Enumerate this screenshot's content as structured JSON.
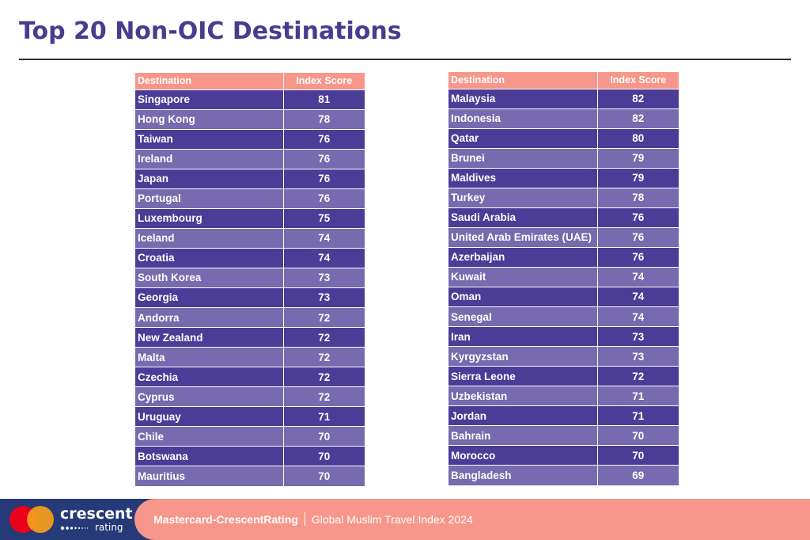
{
  "page": {
    "title": "Top 20 Non-OIC Destinations"
  },
  "table_header": {
    "destination": "Destination",
    "score": "Index Score"
  },
  "left_table": [
    {
      "destination": "Singapore",
      "score": "81"
    },
    {
      "destination": "Hong Kong",
      "score": "78"
    },
    {
      "destination": "Taiwan",
      "score": "76"
    },
    {
      "destination": "Ireland",
      "score": "76"
    },
    {
      "destination": "Japan",
      "score": "76"
    },
    {
      "destination": "Portugal",
      "score": "76"
    },
    {
      "destination": "Luxembourg",
      "score": "75"
    },
    {
      "destination": "Iceland",
      "score": "74"
    },
    {
      "destination": "Croatia",
      "score": "74"
    },
    {
      "destination": "South Korea",
      "score": "73"
    },
    {
      "destination": "Georgia",
      "score": "73"
    },
    {
      "destination": "Andorra",
      "score": "72"
    },
    {
      "destination": "New Zealand",
      "score": "72"
    },
    {
      "destination": "Malta",
      "score": "72"
    },
    {
      "destination": "Czechia",
      "score": "72"
    },
    {
      "destination": "Cyprus",
      "score": "72"
    },
    {
      "destination": "Uruguay",
      "score": "71"
    },
    {
      "destination": "Chile",
      "score": "70"
    },
    {
      "destination": "Botswana",
      "score": "70"
    },
    {
      "destination": "Mauritius",
      "score": "70"
    }
  ],
  "right_table": [
    {
      "destination": "Malaysia",
      "score": "82"
    },
    {
      "destination": "Indonesia",
      "score": "82"
    },
    {
      "destination": "Qatar",
      "score": "80"
    },
    {
      "destination": "Brunei",
      "score": "79"
    },
    {
      "destination": "Maldives",
      "score": "79"
    },
    {
      "destination": "Turkey",
      "score": "78"
    },
    {
      "destination": "Saudi Arabia",
      "score": "76"
    },
    {
      "destination": "United Arab Emirates (UAE)",
      "score": "76"
    },
    {
      "destination": "Azerbaijan",
      "score": "76"
    },
    {
      "destination": "Kuwait",
      "score": "74"
    },
    {
      "destination": "Oman",
      "score": "74"
    },
    {
      "destination": "Senegal",
      "score": "74"
    },
    {
      "destination": "Iran",
      "score": "73"
    },
    {
      "destination": "Kyrgyzstan",
      "score": "73"
    },
    {
      "destination": "Sierra Leone",
      "score": "72"
    },
    {
      "destination": "Uzbekistan",
      "score": "71"
    },
    {
      "destination": "Jordan",
      "score": "71"
    },
    {
      "destination": "Bahrain",
      "score": "70"
    },
    {
      "destination": "Morocco",
      "score": "70"
    },
    {
      "destination": "Bangladesh",
      "score": "69"
    }
  ],
  "footer": {
    "brand_name": "crescent",
    "brand_sub": "rating",
    "publisher": "Mastercard-CrescentRating",
    "report": "Global Muslim Travel Index 2024",
    "icons": [
      "mastercard-logo",
      "crescentrating-logo"
    ]
  },
  "colors": {
    "title": "#4b3a8e",
    "header": "#f7968a",
    "row_dark": "#4b3c97",
    "row_light": "#776aae",
    "footer_navy": "#263a78",
    "footer_band": "#f7968a"
  }
}
